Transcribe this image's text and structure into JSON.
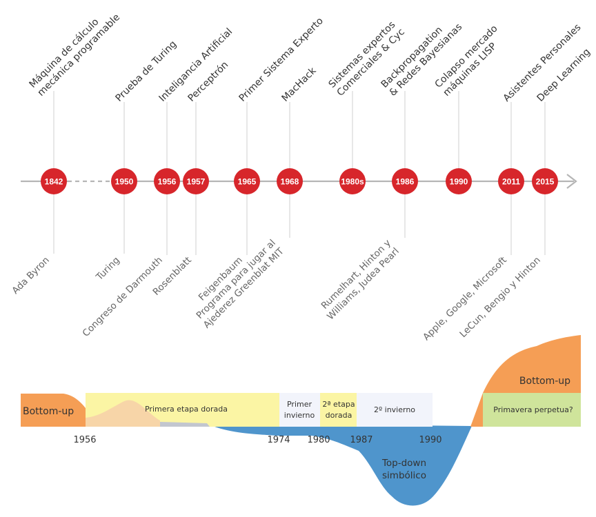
{
  "colors": {
    "node": "#d7262b",
    "axis": "#b5b5b5",
    "bottom_up": "#f59e55",
    "top_down": "#4f95cc",
    "golden": "#fbf5a4",
    "winter": "#f2f4fb",
    "perpetual": "#cfe49b"
  },
  "timeline": {
    "events": [
      {
        "year": "1842",
        "upper": [
          "Máquina de cálculo",
          "mecánica programable"
        ],
        "lower": [
          "Ada Byron"
        ]
      },
      {
        "year": "1950",
        "upper": [
          "Prueba de Turing"
        ],
        "lower": [
          "Turing"
        ]
      },
      {
        "year": "1956",
        "upper": [
          "Inteligancia Artificial"
        ],
        "lower": [
          "Congreso de Darmouth"
        ]
      },
      {
        "year": "1957",
        "upper": [
          "Perceptrón"
        ],
        "lower": [
          "Rosenblatt"
        ]
      },
      {
        "year": "1965",
        "upper": [
          "Primer Sistema Experto"
        ],
        "lower": [
          "Feigenbaum"
        ]
      },
      {
        "year": "1968",
        "upper": [
          "MacHack"
        ],
        "lower": [
          "Programa para jugar al",
          "Ajederez Greenblat MIT"
        ]
      },
      {
        "year": "1980s",
        "upper": [
          "Sistemas expertos",
          "Comerciales & Cyc"
        ],
        "lower": []
      },
      {
        "year": "1986",
        "upper": [
          "Backpropagation",
          "& Redes Bayesianas"
        ],
        "lower": [
          "Rumelhart, Hinton y",
          "Williams, Judea Pearl"
        ]
      },
      {
        "year": "1990",
        "upper": [
          "Colapso mercado",
          "máquinas LISP"
        ],
        "lower": []
      },
      {
        "year": "2011",
        "upper": [
          "Asistentes Personales"
        ],
        "lower": [
          "Apple, Google, Microsoft"
        ]
      },
      {
        "year": "2015",
        "upper": [
          "Deep Learning"
        ],
        "lower": [
          "LeCun, Bengio y Hinton"
        ]
      }
    ]
  },
  "eras": {
    "bottom_up_left": "Bottom-up",
    "golden_1": "Primera etapa dorada",
    "winter_1": [
      "Primer",
      "invierno"
    ],
    "golden_2": [
      "2ª etapa",
      "dorada"
    ],
    "winter_2": "2º invierno",
    "perpetual": "Primavera perpetua?",
    "bottom_up_right": "Bottom-up",
    "top_down": [
      "Top-down",
      "simbólico"
    ]
  },
  "era_years": [
    "1956",
    "1974",
    "1980",
    "1987",
    "1990"
  ]
}
